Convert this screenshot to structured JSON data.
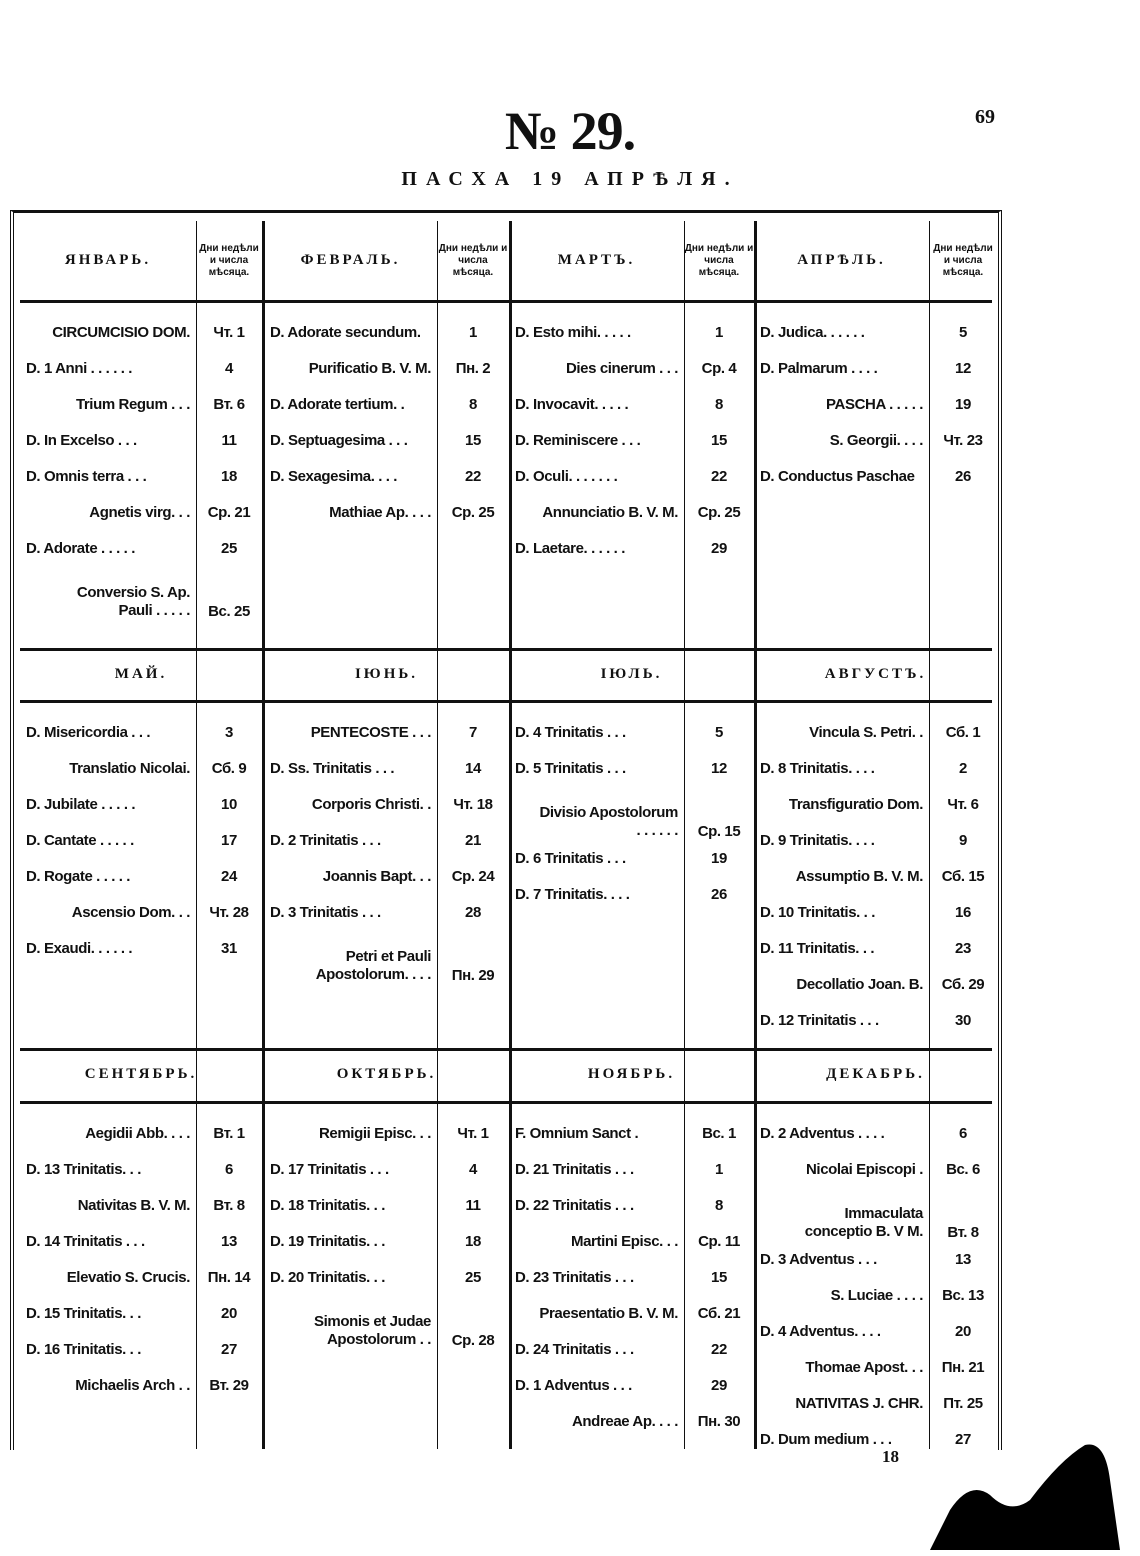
{
  "page_number": "69",
  "title": "№ 29.",
  "subtitle": "ПАСХА 19 АПРѢЛЯ.",
  "day_column_header": "Дни недѣли и числа мѣсяца.",
  "footer_number": "18",
  "sections": [
    {
      "months": [
        {
          "name": "ЯНВАРЬ.",
          "entries": [
            {
              "name": "CIRCUMCISIO DOM.",
              "day": "Чт. 1"
            },
            {
              "name": "D. 1 Anni . . . . . .",
              "day": "4"
            },
            {
              "name": "Trium Regum . . .",
              "day": "Вт. 6"
            },
            {
              "name": "D. In Excelso . . .",
              "day": "11"
            },
            {
              "name": "D. Omnis terra . . .",
              "day": "18"
            },
            {
              "name": "Agnetis virg. . .",
              "day": "Ср. 21"
            },
            {
              "name": "D. Adorate . . . . .",
              "day": "25"
            },
            {
              "name": "Conversio S. Ap. Pauli . . . . .",
              "day": "Вс. 25"
            }
          ]
        },
        {
          "name": "ФЕВРАЛЬ.",
          "entries": [
            {
              "name": "D. Adorate secundum.",
              "day": "1"
            },
            {
              "name": "Purificatio B. V. M.",
              "day": "Пн. 2"
            },
            {
              "name": "D. Adorate tertium. .",
              "day": "8"
            },
            {
              "name": "D. Septuagesima . . .",
              "day": "15"
            },
            {
              "name": "D. Sexagesima. . . .",
              "day": "22"
            },
            {
              "name": "Mathiae Ap. . . .",
              "day": "Ср. 25"
            }
          ]
        },
        {
          "name": "МАРТЪ.",
          "entries": [
            {
              "name": "D. Esto mihi. . . . .",
              "day": "1"
            },
            {
              "name": "Dies cinerum . . .",
              "day": "Ср. 4"
            },
            {
              "name": "D. Invocavit. . . . .",
              "day": "8"
            },
            {
              "name": "D. Reminiscere . . .",
              "day": "15"
            },
            {
              "name": "D. Oculi. . . . . . .",
              "day": "22"
            },
            {
              "name": "Annunciatio B. V. M.",
              "day": "Ср. 25"
            },
            {
              "name": "D. Laetare. . . . . .",
              "day": "29"
            }
          ]
        },
        {
          "name": "АПРѢЛЬ.",
          "entries": [
            {
              "name": "D. Judica. . . . . .",
              "day": "5"
            },
            {
              "name": "D. Palmarum . . . .",
              "day": "12"
            },
            {
              "name": "PASCHA . . . . .",
              "day": "19"
            },
            {
              "name": "S. Georgii. . . .",
              "day": "Чт. 23"
            },
            {
              "name": "D. Conductus Paschae",
              "day": "26"
            }
          ]
        }
      ]
    },
    {
      "months": [
        {
          "name": "МАЙ.",
          "entries": [
            {
              "name": "D. Misericordia . . .",
              "day": "3"
            },
            {
              "name": "Translatio Nicolai.",
              "day": "Сб. 9"
            },
            {
              "name": "D. Jubilate . . . . .",
              "day": "10"
            },
            {
              "name": "D. Cantate . . . . .",
              "day": "17"
            },
            {
              "name": "D. Rogate . . . . .",
              "day": "24"
            },
            {
              "name": "Ascensio Dom. . .",
              "day": "Чт. 28"
            },
            {
              "name": "D. Exaudi. . . . . .",
              "day": "31"
            }
          ]
        },
        {
          "name": "ІЮНЬ.",
          "entries": [
            {
              "name": "PENTECOSTE . . .",
              "day": "7"
            },
            {
              "name": "D. Ss. Trinitatis . . .",
              "day": "14"
            },
            {
              "name": "Corporis Christi. .",
              "day": "Чт. 18"
            },
            {
              "name": "D. 2 Trinitatis . . .",
              "day": "21"
            },
            {
              "name": "Joannis Bapt. . .",
              "day": "Ср. 24"
            },
            {
              "name": "D. 3 Trinitatis . . .",
              "day": "28"
            },
            {
              "name": "Petri et Pauli Apostolorum. . . .",
              "day": "Пн. 29"
            }
          ]
        },
        {
          "name": "ІЮЛЬ.",
          "entries": [
            {
              "name": "D. 4 Trinitatis . . .",
              "day": "5"
            },
            {
              "name": "D. 5 Trinitatis . . .",
              "day": "12"
            },
            {
              "name": "Divisio Apostolorum . . . . . .",
              "day": "Ср. 15"
            },
            {
              "name": "D. 6 Trinitatis . . .",
              "day": "19"
            },
            {
              "name": "D. 7 Trinitatis. . . .",
              "day": "26"
            }
          ]
        },
        {
          "name": "АВГУСТЪ.",
          "entries": [
            {
              "name": "Vincula S. Petri. .",
              "day": "Сб. 1"
            },
            {
              "name": "D. 8 Trinitatis. . . .",
              "day": "2"
            },
            {
              "name": "Transfiguratio Dom.",
              "day": "Чт. 6"
            },
            {
              "name": "D. 9 Trinitatis. . . .",
              "day": "9"
            },
            {
              "name": "Assumptio B. V. M.",
              "day": "Сб. 15"
            },
            {
              "name": "D. 10 Trinitatis. . .",
              "day": "16"
            },
            {
              "name": "D. 11 Trinitatis. . .",
              "day": "23"
            },
            {
              "name": "Decollatio Joan. B.",
              "day": "Сб. 29"
            },
            {
              "name": "D. 12 Trinitatis . . .",
              "day": "30"
            }
          ]
        }
      ]
    },
    {
      "months": [
        {
          "name": "СЕНТЯБРЬ.",
          "entries": [
            {
              "name": "Aegidii Abb. . . .",
              "day": "Вт. 1"
            },
            {
              "name": "D. 13 Trinitatis. . .",
              "day": "6"
            },
            {
              "name": "Nativitas B. V. M.",
              "day": "Вт. 8"
            },
            {
              "name": "D. 14 Trinitatis . . .",
              "day": "13"
            },
            {
              "name": "Elevatio S. Crucis.",
              "day": "Пн. 14"
            },
            {
              "name": "D. 15 Trinitatis. . .",
              "day": "20"
            },
            {
              "name": "D. 16 Trinitatis. . .",
              "day": "27"
            },
            {
              "name": "Michaelis Arch . .",
              "day": "Вт. 29"
            }
          ]
        },
        {
          "name": "ОКТЯБРЬ.",
          "entries": [
            {
              "name": "Remigii Episc. . .",
              "day": "Чт. 1"
            },
            {
              "name": "D. 17 Trinitatis . . .",
              "day": "4"
            },
            {
              "name": "D. 18 Trinitatis. . .",
              "day": "11"
            },
            {
              "name": "D. 19 Trinitatis. . .",
              "day": "18"
            },
            {
              "name": "D. 20 Trinitatis. . .",
              "day": "25"
            },
            {
              "name": "Simonis et Judae Apostolorum . .",
              "day": "Ср. 28"
            }
          ]
        },
        {
          "name": "НОЯБРЬ.",
          "entries": [
            {
              "name": "F. Omnium Sanct .",
              "day": "Вс. 1"
            },
            {
              "name": "D. 21 Trinitatis . . .",
              "day": "1"
            },
            {
              "name": "D. 22 Trinitatis . . .",
              "day": "8"
            },
            {
              "name": "Martini Episc. . .",
              "day": "Ср. 11"
            },
            {
              "name": "D. 23 Trinitatis . . .",
              "day": "15"
            },
            {
              "name": "Praesentatio B. V. M.",
              "day": "Сб. 21"
            },
            {
              "name": "D. 24 Trinitatis . . .",
              "day": "22"
            },
            {
              "name": "D. 1 Adventus . . .",
              "day": "29"
            },
            {
              "name": "Andreae Ap. . . .",
              "day": "Пн. 30"
            }
          ]
        },
        {
          "name": "ДЕКАБРЬ.",
          "entries": [
            {
              "name": "D. 2 Adventus . . . .",
              "day": "6"
            },
            {
              "name": "Nicolai Episcopi .",
              "day": "Вс. 6"
            },
            {
              "name": "Immaculata conceptio B. V M.",
              "day": "Вт. 8"
            },
            {
              "name": "D. 3 Adventus . . .",
              "day": "13"
            },
            {
              "name": "S. Luciae . . . .",
              "day": "Вс. 13"
            },
            {
              "name": "D. 4 Adventus. . . .",
              "day": "20"
            },
            {
              "name": "Thomae Apost. . .",
              "day": "Пн. 21"
            },
            {
              "name": "NATIVITAS J. CHR.",
              "day": "Пт. 25"
            },
            {
              "name": "D. Dum medium . . .",
              "day": "27"
            }
          ]
        }
      ]
    }
  ]
}
